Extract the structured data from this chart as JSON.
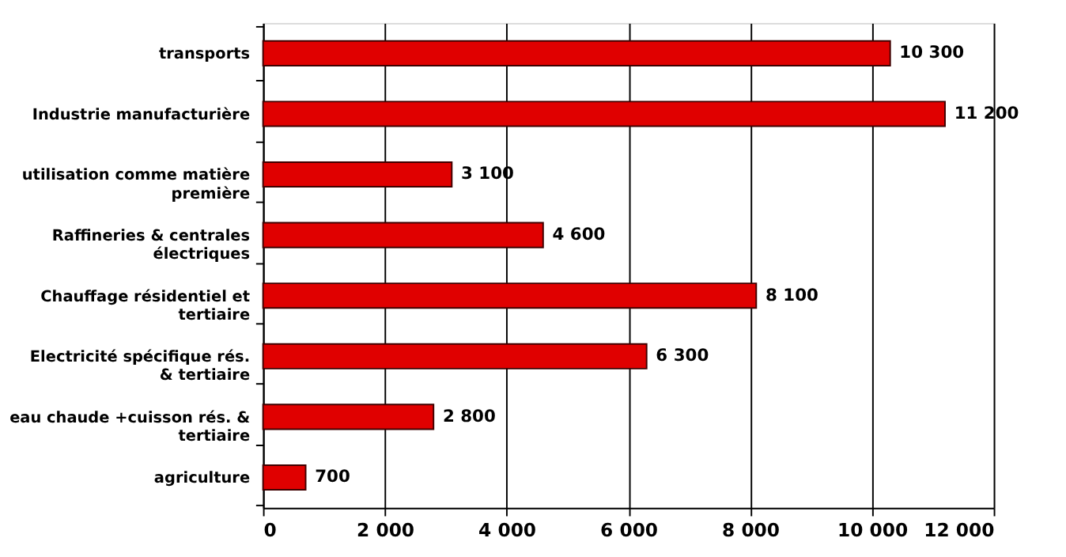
{
  "chart_data": {
    "type": "bar",
    "orientation": "horizontal",
    "categories": [
      "transports",
      "Industrie manufacturière",
      "utilisation comme matière\npremière",
      "Raffineries & centrales\nélectriques",
      "Chauffage résidentiel et\ntertiaire",
      "Electricité spécifique rés.\n& tertiaire",
      "eau chaude +cuisson rés. &\ntertiaire",
      "agriculture"
    ],
    "values": [
      10300,
      11200,
      3100,
      4600,
      8100,
      6300,
      2800,
      700
    ],
    "value_labels": [
      "10 300",
      "11 200",
      "3 100",
      "4 600",
      "8 100",
      "6 300",
      "2 800",
      "700"
    ],
    "color": "#e00000",
    "xlim": [
      0,
      12000
    ],
    "xticks": [
      0,
      {
        "value": 2000,
        "label": "2 000"
      },
      {
        "value": 4000,
        "label": "4 000"
      },
      {
        "value": 6000,
        "label": "6 000"
      },
      {
        "value": 8000,
        "label": "8 000"
      },
      {
        "value": 10000,
        "label": "10 000"
      },
      {
        "value": 12000,
        "label": "12 000"
      }
    ],
    "grid": "x"
  }
}
